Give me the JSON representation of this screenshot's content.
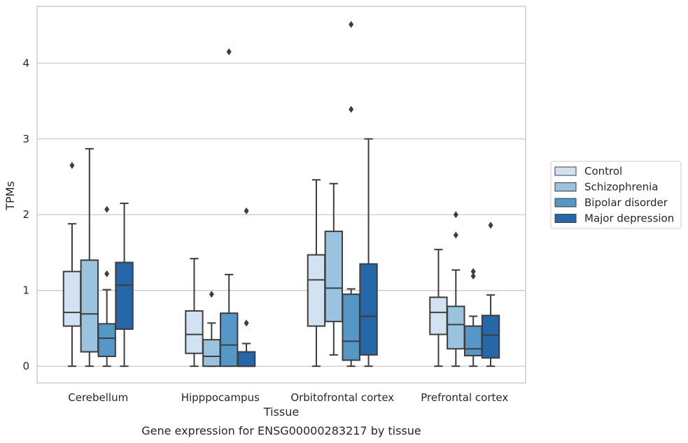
{
  "chart_data": {
    "type": "box",
    "xlabel": "Tissue",
    "ylabel": "TPMs",
    "caption": "Gene expression for ENSG00000283217 by tissue",
    "ylim": [
      -0.22,
      4.75
    ],
    "yticks": [
      0,
      1,
      2,
      3,
      4
    ],
    "grid": "horizontal",
    "legend_position": "right",
    "categories": [
      "Cerebellum",
      "Hipppocampus",
      "Orbitofrontal cortex",
      "Prefrontal cortex"
    ],
    "series": [
      {
        "name": "Control",
        "color": "#d2e2f1",
        "boxes": [
          {
            "whislo": 0.0,
            "q1": 0.53,
            "med": 0.71,
            "q3": 1.25,
            "whishi": 1.88,
            "fliers": [
              2.65
            ]
          },
          {
            "whislo": 0.0,
            "q1": 0.17,
            "med": 0.42,
            "q3": 0.73,
            "whishi": 1.42,
            "fliers": []
          },
          {
            "whislo": 0.0,
            "q1": 0.53,
            "med": 1.14,
            "q3": 1.47,
            "whishi": 2.46,
            "fliers": []
          },
          {
            "whislo": 0.0,
            "q1": 0.42,
            "med": 0.71,
            "q3": 0.91,
            "whishi": 1.54,
            "fliers": []
          }
        ]
      },
      {
        "name": "Schizophrenia",
        "color": "#9ac3df",
        "boxes": [
          {
            "whislo": 0.0,
            "q1": 0.19,
            "med": 0.69,
            "q3": 1.4,
            "whishi": 2.87,
            "fliers": []
          },
          {
            "whislo": 0.0,
            "q1": 0.0,
            "med": 0.13,
            "q3": 0.35,
            "whishi": 0.57,
            "fliers": [
              0.95
            ]
          },
          {
            "whislo": 0.15,
            "q1": 0.59,
            "med": 1.03,
            "q3": 1.78,
            "whishi": 2.41,
            "fliers": []
          },
          {
            "whislo": 0.0,
            "q1": 0.23,
            "med": 0.55,
            "q3": 0.79,
            "whishi": 1.27,
            "fliers": [
              1.73,
              2.0
            ]
          }
        ]
      },
      {
        "name": "Bipolar disorder",
        "color": "#5597c6",
        "boxes": [
          {
            "whislo": 0.0,
            "q1": 0.13,
            "med": 0.37,
            "q3": 0.56,
            "whishi": 1.01,
            "fliers": [
              1.22,
              2.07
            ]
          },
          {
            "whislo": 0.0,
            "q1": 0.0,
            "med": 0.28,
            "q3": 0.7,
            "whishi": 1.21,
            "fliers": [
              4.15
            ]
          },
          {
            "whislo": 0.0,
            "q1": 0.08,
            "med": 0.33,
            "q3": 0.95,
            "whishi": 1.02,
            "fliers": [
              3.39,
              4.51
            ]
          },
          {
            "whislo": 0.0,
            "q1": 0.14,
            "med": 0.23,
            "q3": 0.53,
            "whishi": 0.66,
            "fliers": [
              1.19,
              1.25
            ]
          }
        ]
      },
      {
        "name": "Major depression",
        "color": "#2567a8",
        "boxes": [
          {
            "whislo": 0.0,
            "q1": 0.49,
            "med": 1.07,
            "q3": 1.37,
            "whishi": 2.15,
            "fliers": []
          },
          {
            "whislo": 0.0,
            "q1": 0.0,
            "med": 0.0,
            "q3": 0.19,
            "whishi": 0.3,
            "fliers": [
              0.57,
              2.05
            ]
          },
          {
            "whislo": 0.0,
            "q1": 0.15,
            "med": 0.66,
            "q3": 1.35,
            "whishi": 3.0,
            "fliers": []
          },
          {
            "whislo": 0.0,
            "q1": 0.11,
            "med": 0.41,
            "q3": 0.67,
            "whishi": 0.94,
            "fliers": [
              1.86
            ]
          }
        ]
      }
    ]
  }
}
